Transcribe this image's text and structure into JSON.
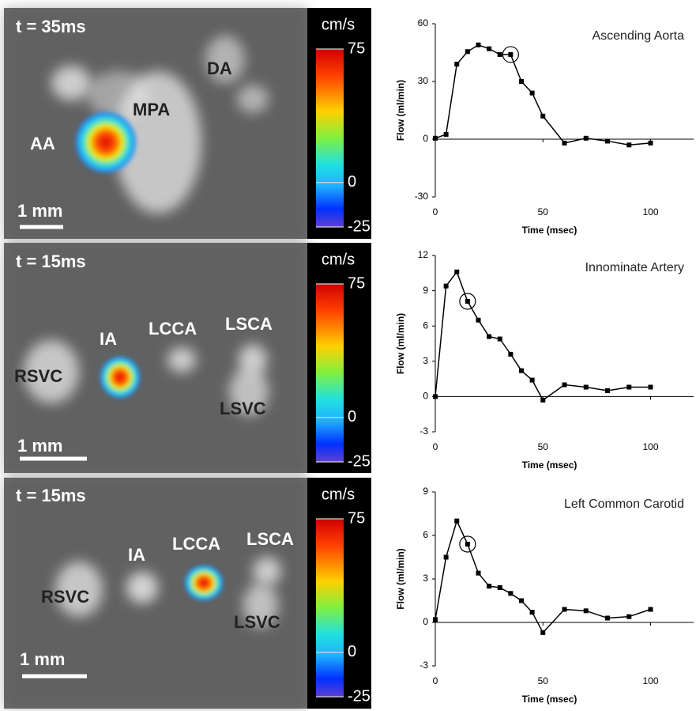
{
  "panels": [
    {
      "time_label": "t = 35ms",
      "labels": [
        "AA",
        "MPA",
        "DA"
      ],
      "scale_label": "1 mm",
      "colorbar": {
        "unit": "cm/s",
        "lim": [
          -25,
          75
        ],
        "ticks": [
          75,
          0,
          -25
        ]
      }
    },
    {
      "time_label": "t = 15ms",
      "labels": [
        "IA",
        "LCCA",
        "LSCA",
        "RSVC",
        "LSVC"
      ],
      "scale_label": "1 mm",
      "colorbar": {
        "unit": "cm/s",
        "lim": [
          -25,
          75
        ],
        "ticks": [
          75,
          0,
          -25
        ]
      }
    },
    {
      "time_label": "t = 15ms",
      "labels": [
        "IA",
        "LCCA",
        "LSCA",
        "RSVC",
        "LSVC"
      ],
      "scale_label": "1 mm",
      "colorbar": {
        "unit": "cm/s",
        "lim": [
          -25,
          75
        ],
        "ticks": [
          75,
          0,
          -25
        ]
      }
    }
  ],
  "chart_data": [
    {
      "type": "line",
      "title": "Ascending Aorta",
      "xlabel": "Time (msec)",
      "ylabel": "Flow (ml/min)",
      "x": [
        0,
        5,
        10,
        15,
        20,
        25,
        30,
        35,
        40,
        45,
        50,
        60,
        70,
        80,
        90,
        100
      ],
      "values": [
        0.5,
        2.5,
        39,
        45.5,
        49,
        47,
        44,
        44,
        30,
        24,
        12,
        -2,
        0.5,
        -1,
        -3,
        -2
      ],
      "color": "#000000",
      "xlim": [
        0,
        120
      ],
      "ylim": [
        -30,
        60
      ],
      "xticks": [
        0,
        50,
        100
      ],
      "yticks": [
        -30,
        0,
        30,
        60
      ],
      "highlight": {
        "x": 35,
        "y": 44
      }
    },
    {
      "type": "line",
      "title": "Innominate Artery",
      "xlabel": "Time (msec)",
      "ylabel": "Flow (ml/min)",
      "x": [
        0,
        5,
        10,
        15,
        20,
        25,
        30,
        35,
        40,
        45,
        50,
        60,
        70,
        80,
        90,
        100
      ],
      "values": [
        0,
        9.4,
        10.6,
        8.1,
        6.5,
        5.1,
        4.9,
        3.6,
        2.2,
        1.4,
        -0.3,
        1.0,
        0.8,
        0.5,
        0.8,
        0.8
      ],
      "color": "#000000",
      "xlim": [
        0,
        120
      ],
      "ylim": [
        -3,
        12
      ],
      "xticks": [
        0,
        50,
        100
      ],
      "yticks": [
        -3,
        0,
        3,
        6,
        9,
        12
      ],
      "highlight": {
        "x": 15,
        "y": 8.1
      }
    },
    {
      "type": "line",
      "title": "Left Common Carotid",
      "xlabel": "Time (msec)",
      "ylabel": "Flow (ml/min)",
      "x": [
        0,
        5,
        10,
        15,
        20,
        25,
        30,
        35,
        40,
        45,
        50,
        60,
        70,
        80,
        90,
        100
      ],
      "values": [
        0.2,
        4.5,
        7.0,
        5.4,
        3.4,
        2.5,
        2.4,
        2.0,
        1.5,
        0.7,
        -0.7,
        0.9,
        0.8,
        0.3,
        0.4,
        0.9
      ],
      "color": "#000000",
      "xlim": [
        0,
        120
      ],
      "ylim": [
        -3,
        9
      ],
      "xticks": [
        0,
        50,
        100
      ],
      "yticks": [
        -3,
        0,
        3,
        6,
        9
      ],
      "highlight": {
        "x": 15,
        "y": 5.4
      }
    }
  ]
}
